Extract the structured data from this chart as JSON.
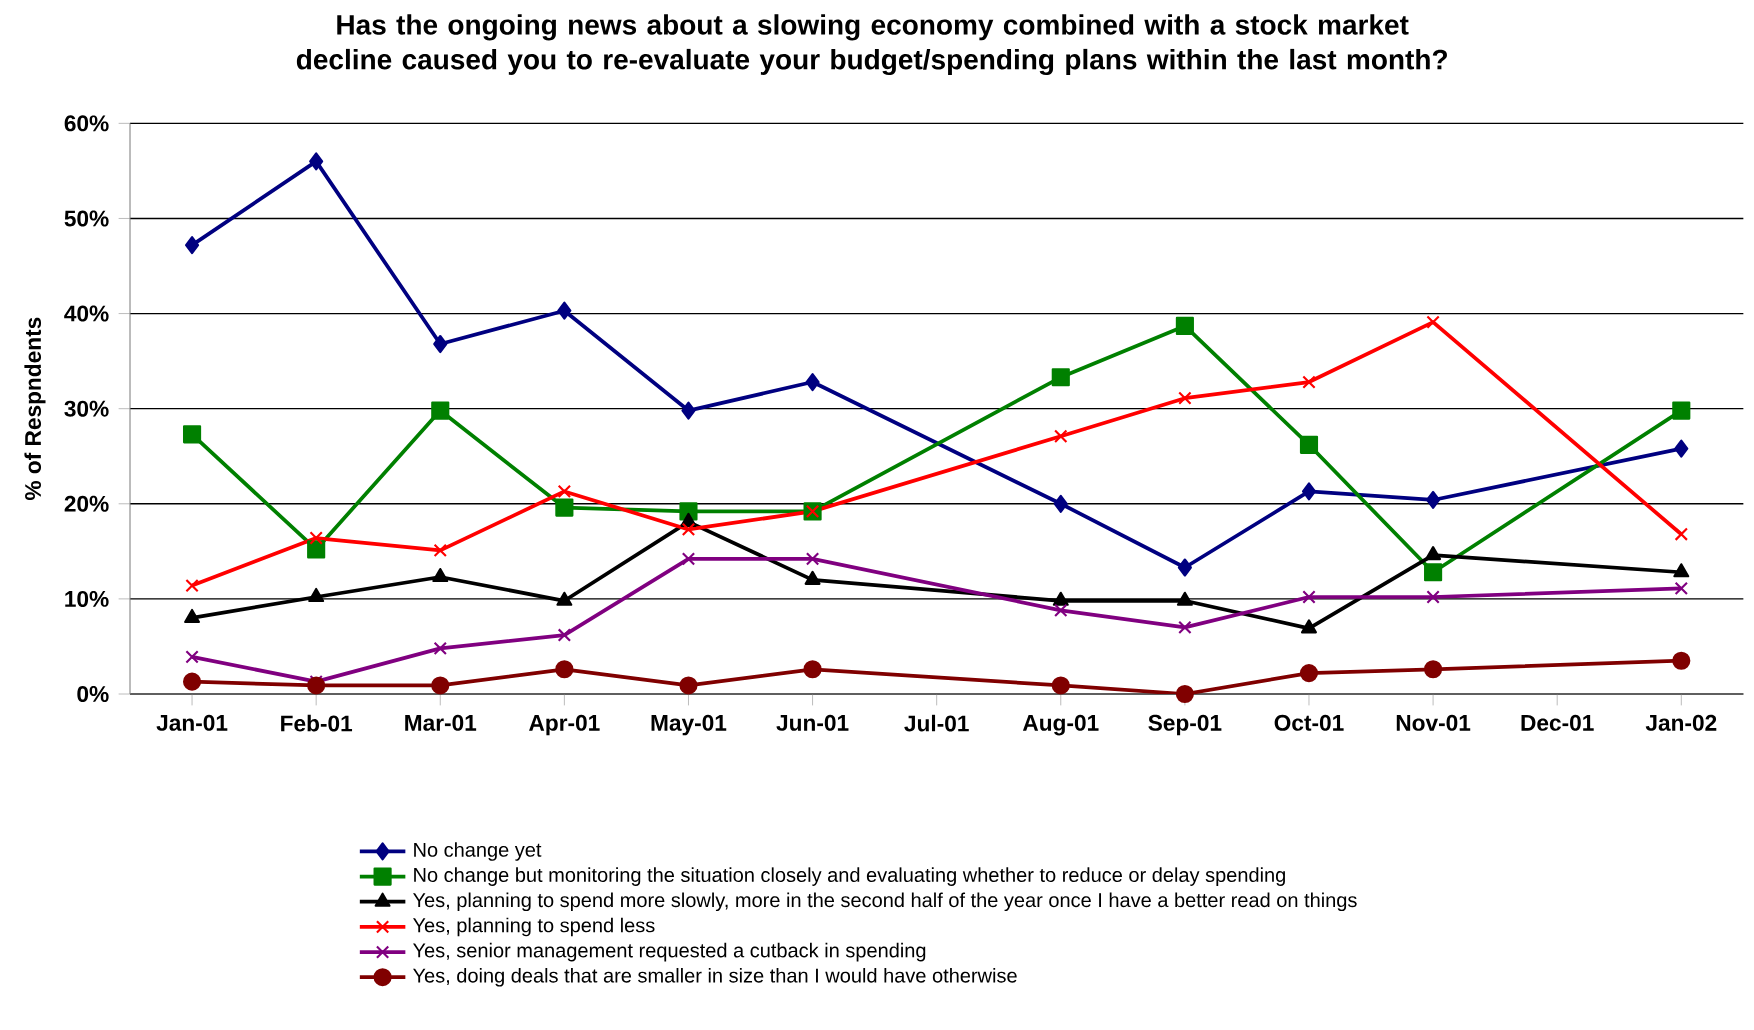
{
  "chart_data": {
    "type": "line",
    "title": "Has the ongoing news about a slowing economy combined with a stock market decline caused you to re-evaluate your budget/spending plans within the last month?",
    "ylabel": "% of Respndents",
    "categories": [
      "Jan-01",
      "Feb-01",
      "Mar-01",
      "Apr-01",
      "May-01",
      "Jun-01",
      "Jul-01",
      "Aug-01",
      "Sep-01",
      "Oct-01",
      "Nov-01",
      "Dec-01",
      "Jan-02"
    ],
    "series": [
      {
        "name": "No change yet",
        "color": "#000080",
        "marker": "diamond",
        "values": [
          47.2,
          56,
          36.8,
          40.3,
          29.8,
          32.8,
          null,
          20,
          13.3,
          21.3,
          20.4,
          null,
          25.8
        ]
      },
      {
        "name": "No change but monitoring the situation closely and evaluating whether to reduce or delay spending",
        "color": "#008000",
        "marker": "square",
        "values": [
          27.3,
          15.2,
          29.8,
          19.6,
          19.2,
          19.2,
          null,
          33.3,
          38.7,
          26.2,
          12.8,
          null,
          29.8
        ]
      },
      {
        "name": "Yes, planning to spend more slowly, more in the second half of the year once I have a better read on things",
        "color": "#000000",
        "marker": "triangle",
        "values": [
          8,
          10.2,
          12.3,
          9.8,
          18.1,
          12,
          null,
          9.8,
          9.8,
          6.9,
          14.6,
          null,
          12.8
        ]
      },
      {
        "name": "Yes, planning to spend less",
        "color": "#ff0000",
        "marker": "cross",
        "values": [
          11.4,
          16.4,
          15.1,
          21.3,
          17.3,
          19.2,
          null,
          27.1,
          31.1,
          32.8,
          39.1,
          null,
          16.8
        ]
      },
      {
        "name": "Yes, senior management requested a cutback in spending",
        "color": "#800080",
        "marker": "cross",
        "values": [
          3.9,
          1.3,
          4.8,
          6.2,
          14.2,
          14.2,
          null,
          8.8,
          7,
          10.2,
          10.2,
          null,
          11.1
        ]
      },
      {
        "name": "Yes, doing deals that are smaller in size than I would have otherwise",
        "color": "#800000",
        "marker": "circle",
        "values": [
          1.3,
          0.9,
          0.9,
          2.6,
          0.9,
          2.6,
          null,
          0.9,
          0,
          2.2,
          2.6,
          null,
          3.5
        ]
      }
    ],
    "ylim": [
      0,
      60
    ],
    "yticks": [
      {
        "value": 0,
        "label": "0%"
      },
      {
        "value": 10,
        "label": "10%"
      },
      {
        "value": 20,
        "label": "20%"
      },
      {
        "value": 30,
        "label": "30%"
      },
      {
        "value": 40,
        "label": "40%"
      },
      {
        "value": 50,
        "label": "50%"
      },
      {
        "value": 60,
        "label": "60%"
      }
    ],
    "grid": "y",
    "legend": "bottom"
  }
}
